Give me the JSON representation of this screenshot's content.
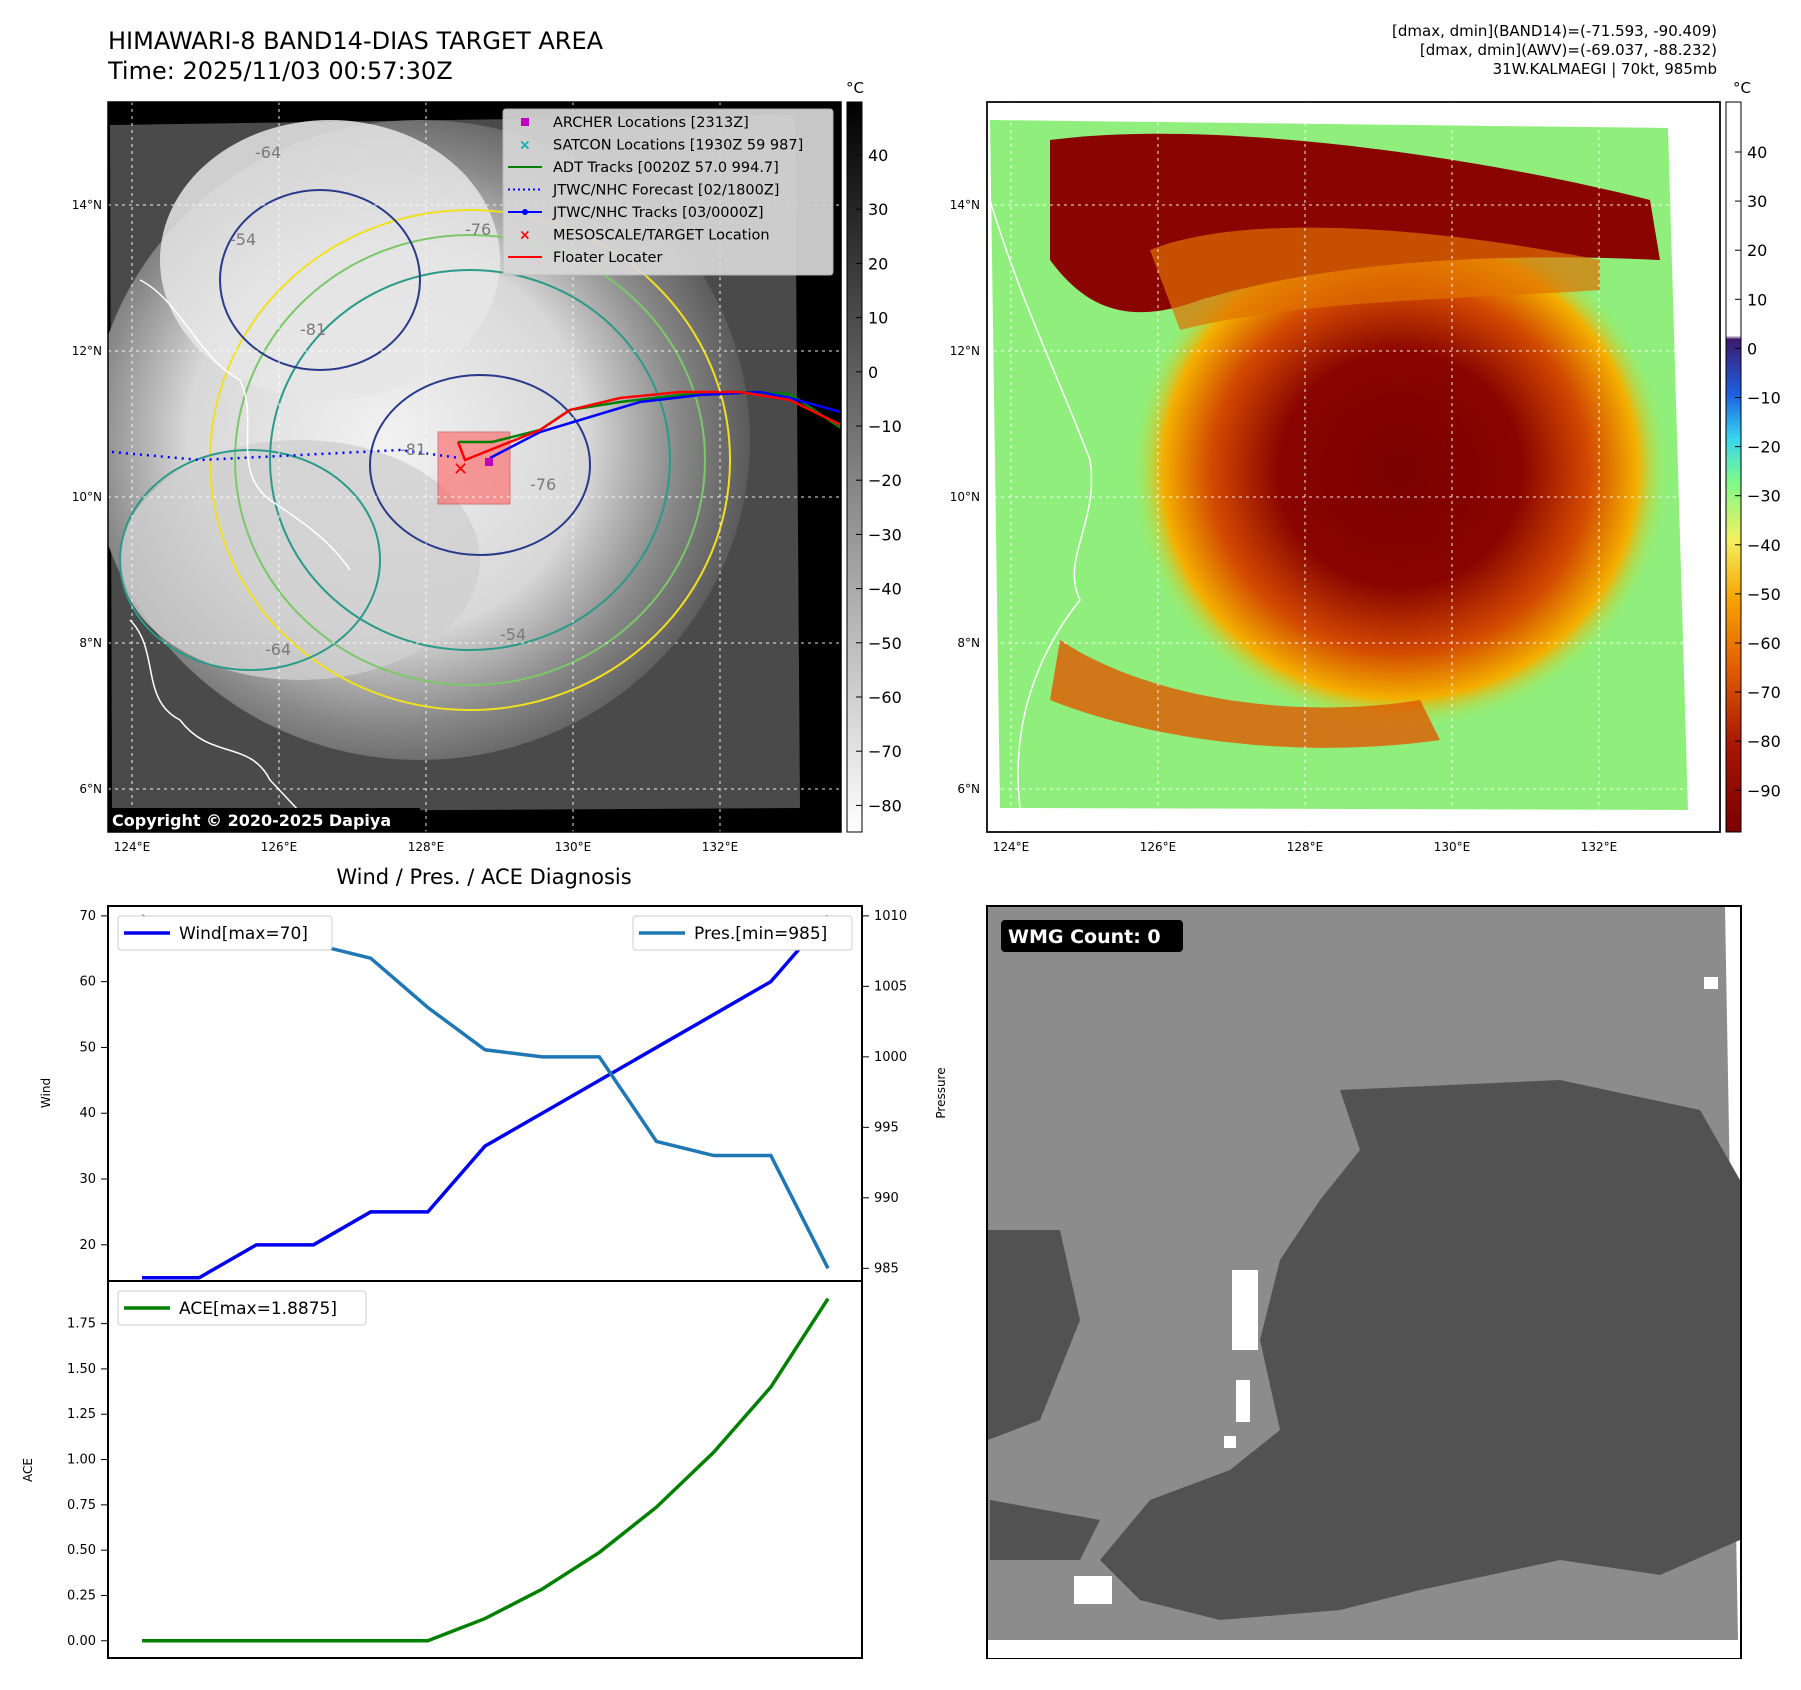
{
  "header": {
    "title_line1": "HIMAWARI-8 BAND14-DIAS TARGET AREA",
    "title_line2": "Time: 2025/11/03 00:57:30Z",
    "stats_line1": "[dmax, dmin](BAND14)=(-71.593, -90.409)",
    "stats_line2": "[dmax, dmin](AWV)=(-69.037, -88.232)",
    "stats_line3": "31W.KALMAEGI | 70kt, 985mb"
  },
  "map_ir": {
    "unit": "°C",
    "colorbar_ticks": [
      "40",
      "30",
      "20",
      "10",
      "0",
      "−10",
      "−20",
      "−30",
      "−40",
      "−50",
      "−60",
      "−70",
      "−80"
    ],
    "lon_ticks": [
      "124°E",
      "126°E",
      "128°E",
      "130°E",
      "132°E"
    ],
    "lat_ticks": [
      "14°N",
      "12°N",
      "10°N",
      "8°N",
      "6°N"
    ],
    "contour_labels": [
      "-64",
      "-54",
      "-81",
      "-76",
      "-81",
      "-76",
      "-64",
      "-54"
    ],
    "copyright": "Copyright © 2020-2025 Dapiya",
    "legend": [
      {
        "label": "ARCHER Locations [2313Z]",
        "color": "#c000c0",
        "symbol": "square"
      },
      {
        "label": "SATCON Locations [1930Z 59 987]",
        "color": "#00b0b0",
        "symbol": "x"
      },
      {
        "label": "ADT Tracks [0020Z 57.0 994.7]",
        "color": "#008000",
        "symbol": "line"
      },
      {
        "label": "JTWC/NHC Forecast [02/1800Z]",
        "color": "#0000ff",
        "symbol": "dotted"
      },
      {
        "label": "JTWC/NHC Tracks [03/0000Z]",
        "color": "#0000ff",
        "symbol": "line-dot"
      },
      {
        "label": "MESOSCALE/TARGET Location",
        "color": "#ff0000",
        "symbol": "x"
      },
      {
        "label": "Floater Locater",
        "color": "#ff0000",
        "symbol": "line"
      }
    ]
  },
  "map_awv": {
    "unit": "°C",
    "colorbar_ticks": [
      "40",
      "30",
      "20",
      "10",
      "0",
      "−10",
      "−20",
      "−30",
      "−40",
      "−50",
      "−60",
      "−70",
      "−80",
      "−90"
    ],
    "lon_ticks": [
      "124°E",
      "126°E",
      "128°E",
      "130°E",
      "132°E"
    ],
    "lat_ticks": [
      "14°N",
      "12°N",
      "10°N",
      "8°N",
      "6°N"
    ]
  },
  "wmg": {
    "badge": "WMG Count: 0"
  },
  "chart_data": [
    {
      "type": "line",
      "title": "Wind / Pres. / ACE Diagnosis",
      "ylabel": "Wind",
      "y2label": "Pressure",
      "ylim": [
        14.5,
        71.5
      ],
      "y2lim": [
        984.1,
        1010.7
      ],
      "yticks": [
        20,
        30,
        40,
        50,
        60,
        70
      ],
      "y2ticks": [
        985,
        990,
        995,
        1000,
        1005,
        1010
      ],
      "x": [
        0,
        1,
        2,
        3,
        4,
        5,
        6,
        7,
        8,
        9,
        10,
        11,
        12
      ],
      "series": [
        {
          "name": "Wind[max=70]",
          "axis": "left",
          "color": "#0000ee",
          "values": [
            15,
            15,
            20,
            20,
            25,
            25,
            35,
            40,
            45,
            50,
            55,
            60,
            70
          ]
        },
        {
          "name": "Pres.[min=985]",
          "axis": "right",
          "color": "#1f77b4",
          "values": [
            1010,
            1008,
            1008,
            1008,
            1007,
            1003.5,
            1000.5,
            1000,
            1000,
            994,
            993,
            993,
            985
          ]
        }
      ],
      "legend": [
        "top-left",
        "top-right"
      ]
    },
    {
      "type": "line",
      "ylabel": "ACE",
      "ylim": [
        -0.095,
        1.985
      ],
      "yticks": [
        "0.00",
        "0.25",
        "0.50",
        "0.75",
        "1.00",
        "1.25",
        "1.50",
        "1.75"
      ],
      "x": [
        0,
        1,
        2,
        3,
        4,
        5,
        6,
        7,
        8,
        9,
        10,
        11,
        12
      ],
      "series": [
        {
          "name": "ACE[max=1.8875]",
          "color": "#008000",
          "values": [
            0,
            0,
            0,
            0,
            0,
            0,
            0.1225,
            0.285,
            0.4875,
            0.7375,
            1.04,
            1.4,
            1.8875
          ]
        }
      ],
      "legend": "top-left"
    }
  ]
}
